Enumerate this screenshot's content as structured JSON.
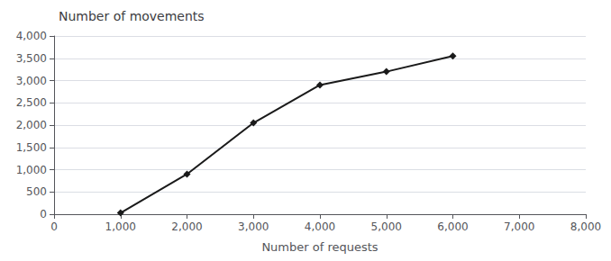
{
  "chart_data": {
    "type": "line",
    "title": "Number of movements",
    "xlabel": "Number of requests",
    "x": [
      1000,
      2000,
      3000,
      4000,
      5000,
      6000
    ],
    "values": [
      30,
      900,
      2050,
      2900,
      3200,
      3550
    ],
    "color": "#1a1a1a",
    "marker": "diamond",
    "xlim": [
      0,
      8000
    ],
    "xticks": [
      0,
      1000,
      2000,
      3000,
      4000,
      5000,
      6000,
      7000,
      8000
    ],
    "ylim": [
      0,
      4000
    ],
    "yticks": [
      0,
      500,
      1000,
      1500,
      2000,
      2500,
      3000,
      3500,
      4000
    ],
    "grid": true
  }
}
